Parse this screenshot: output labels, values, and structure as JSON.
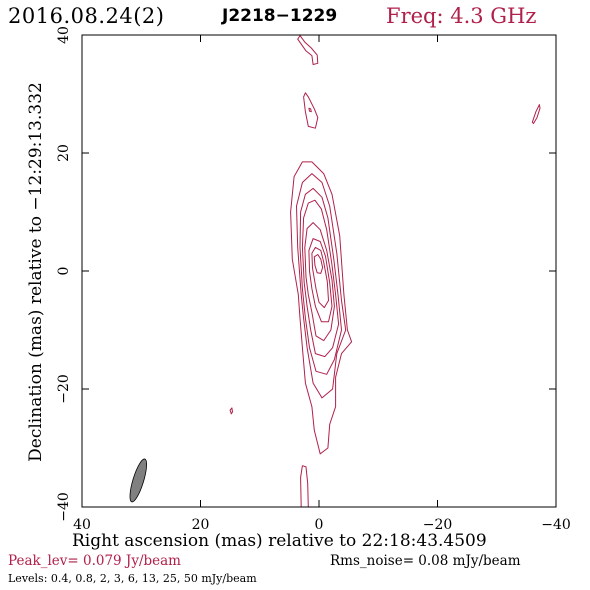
{
  "header": {
    "date": "2016.08.24(2)",
    "source": "J2218−1229",
    "frequency": "Freq: 4.3 GHz"
  },
  "footer": {
    "peak": "Peak_lev=  0.079 Jy/beam",
    "rms": "Rms_noise= 0.08 mJy/beam",
    "levels": "Levels: 0.4, 0.8,   2,   3,   6,  13,  25,  50 mJy/beam"
  },
  "colors": {
    "contour": "#b0204a",
    "beam": "#808080",
    "axes": "#000000"
  },
  "chart_data": {
    "type": "contour",
    "title": "",
    "xlabel": "Right ascension (mas) relative to 22:18:43.4509",
    "ylabel": "Declination (mas) relative to −12:29:13.332",
    "xlim": [
      40,
      -40
    ],
    "ylim": [
      -40,
      40
    ],
    "xticks": [
      40,
      20,
      0,
      -20,
      -40
    ],
    "yticks": [
      -40,
      -20,
      0,
      20,
      40
    ],
    "xtick_labels": [
      "40",
      "20",
      "0",
      "−20",
      "−40"
    ],
    "ytick_labels": [
      "−40",
      "−20",
      "0",
      "20",
      "40"
    ],
    "levels_mJy_per_beam": [
      0.4,
      0.8,
      2,
      3,
      6,
      13,
      25,
      50
    ],
    "peak_Jy_per_beam": 0.079,
    "rms_noise_mJy_per_beam": 0.08,
    "beam": {
      "center": [
        30.5,
        -35.5
      ],
      "major_mas": 7.6,
      "minor_mas": 1.8,
      "pa_deg": -17
    },
    "contours": [
      {
        "level": 0.4,
        "points": [
          [
            3.5,
            -4
          ],
          [
            4.5,
            2
          ],
          [
            4.8,
            10
          ],
          [
            4.2,
            16
          ],
          [
            2.8,
            18.5
          ],
          [
            1.2,
            18.5
          ],
          [
            -0.8,
            16.5
          ],
          [
            -2.2,
            13
          ],
          [
            -3.5,
            6
          ],
          [
            -4.2,
            -4
          ],
          [
            -4.8,
            -10
          ],
          [
            -5.5,
            -12
          ],
          [
            -3.8,
            -14
          ],
          [
            -2.8,
            -18
          ],
          [
            -2.8,
            -23
          ],
          [
            -1.8,
            -26
          ],
          [
            -1.5,
            -30
          ],
          [
            -0.2,
            -31
          ],
          [
            0.8,
            -27
          ],
          [
            1.2,
            -23
          ],
          [
            2.3,
            -19
          ],
          [
            2.8,
            -13
          ],
          [
            3.2,
            -8
          ]
        ]
      },
      {
        "level": 0.8,
        "points": [
          [
            3,
            -4
          ],
          [
            3.6,
            4
          ],
          [
            3.8,
            11
          ],
          [
            2.8,
            15
          ],
          [
            1.2,
            16.5
          ],
          [
            -0.5,
            15
          ],
          [
            -1.8,
            11
          ],
          [
            -3,
            3
          ],
          [
            -3.8,
            -5
          ],
          [
            -4.5,
            -10
          ],
          [
            -3,
            -14
          ],
          [
            -2.3,
            -20
          ],
          [
            -0.5,
            -21.5
          ],
          [
            1,
            -19
          ],
          [
            2,
            -13
          ],
          [
            2.6,
            -8
          ]
        ]
      },
      {
        "level": 2,
        "points": [
          [
            2.8,
            -3
          ],
          [
            3.2,
            4
          ],
          [
            3.1,
            10
          ],
          [
            2.3,
            13
          ],
          [
            1,
            14
          ],
          [
            -0.5,
            12.5
          ],
          [
            -1.5,
            9
          ],
          [
            -2.5,
            2
          ],
          [
            -3.2,
            -4
          ],
          [
            -3.8,
            -10
          ],
          [
            -2.6,
            -15
          ],
          [
            -1.3,
            -17.5
          ],
          [
            0.5,
            -17
          ],
          [
            1.6,
            -13
          ],
          [
            2.3,
            -8
          ]
        ]
      },
      {
        "level": 3,
        "points": [
          [
            2.5,
            -2
          ],
          [
            2.8,
            4
          ],
          [
            2.6,
            9
          ],
          [
            1.8,
            11.5
          ],
          [
            0.7,
            12
          ],
          [
            -0.4,
            10.5
          ],
          [
            -1.3,
            7
          ],
          [
            -2.2,
            1
          ],
          [
            -2.8,
            -4
          ],
          [
            -3.3,
            -9
          ],
          [
            -2.3,
            -13
          ],
          [
            -1,
            -14.5
          ],
          [
            0.6,
            -14
          ],
          [
            1.4,
            -10
          ],
          [
            2,
            -6
          ]
        ]
      },
      {
        "level": 6,
        "points": [
          [
            2.2,
            -1
          ],
          [
            2.4,
            4
          ],
          [
            2,
            7.2
          ],
          [
            1,
            8.2
          ],
          [
            -0.2,
            7
          ],
          [
            -1.3,
            3.5
          ],
          [
            -2.2,
            -1.5
          ],
          [
            -2.6,
            -6
          ],
          [
            -2,
            -10
          ],
          [
            -0.8,
            -11.8
          ],
          [
            0.5,
            -11
          ],
          [
            1.2,
            -7
          ],
          [
            1.8,
            -4
          ]
        ]
      },
      {
        "level": 13,
        "points": [
          [
            1.6,
            0
          ],
          [
            1.7,
            3.5
          ],
          [
            1,
            5.5
          ],
          [
            -0.2,
            5
          ],
          [
            -1.1,
            2.5
          ],
          [
            -1.8,
            -2
          ],
          [
            -2.2,
            -6
          ],
          [
            -1.6,
            -8.6
          ],
          [
            -0.4,
            -8.6
          ],
          [
            0.6,
            -6
          ],
          [
            1.2,
            -3
          ]
        ]
      },
      {
        "level": 25,
        "points": [
          [
            1.1,
            0.5
          ],
          [
            1.2,
            3
          ],
          [
            0.6,
            4
          ],
          [
            -0.3,
            3.5
          ],
          [
            -0.8,
            1.5
          ],
          [
            -1.4,
            -1.8
          ],
          [
            -1.6,
            -5
          ],
          [
            -0.9,
            -6.2
          ],
          [
            0,
            -5.3
          ],
          [
            0.5,
            -3
          ]
        ]
      },
      {
        "level": 50,
        "points": [
          [
            0.7,
            1
          ],
          [
            0.8,
            2.4
          ],
          [
            0.2,
            2.8
          ],
          [
            -0.3,
            2
          ],
          [
            -0.6,
            0.6
          ],
          [
            -0.3,
            -0.4
          ],
          [
            0.3,
            -0.3
          ]
        ]
      },
      {
        "level": 0.4,
        "points": [
          [
            1,
            35
          ],
          [
            1.2,
            36.5
          ],
          [
            2.2,
            37.3
          ],
          [
            3.6,
            39.3
          ],
          [
            3.2,
            39.9
          ],
          [
            2.4,
            38.8
          ],
          [
            1.3,
            37.8
          ],
          [
            0.3,
            36.6
          ],
          [
            0.2,
            35.2
          ]
        ]
      },
      {
        "level": 0.4,
        "points": [
          [
            1.8,
            24.5
          ],
          [
            2.3,
            27
          ],
          [
            2.6,
            29.5
          ],
          [
            2.3,
            30.2
          ],
          [
            1.8,
            29.5
          ],
          [
            0.8,
            27.5
          ],
          [
            0.2,
            26
          ],
          [
            0.6,
            24.2
          ]
        ]
      },
      {
        "level": 0.8,
        "points": [
          [
            1.6,
            27.1
          ],
          [
            1.7,
            27.6
          ],
          [
            1.4,
            27.5
          ],
          [
            1.3,
            27
          ]
        ]
      },
      {
        "level": 0.4,
        "points": [
          [
            -36,
            25.2
          ],
          [
            -36.6,
            27
          ],
          [
            -37.2,
            28.2
          ],
          [
            -37.3,
            27.6
          ],
          [
            -36.8,
            26
          ],
          [
            -36.2,
            25
          ]
        ]
      },
      {
        "level": 0.4,
        "points": [
          [
            3,
            -40
          ],
          [
            3.1,
            -35
          ],
          [
            2.8,
            -33
          ],
          [
            2.2,
            -33.2
          ],
          [
            1.9,
            -36
          ],
          [
            1.8,
            -40
          ]
        ]
      },
      {
        "level": 0.4,
        "points": [
          [
            14.8,
            -24.2
          ],
          [
            15,
            -23.6
          ],
          [
            14.7,
            -23.2
          ],
          [
            14.6,
            -23.9
          ]
        ]
      }
    ]
  }
}
